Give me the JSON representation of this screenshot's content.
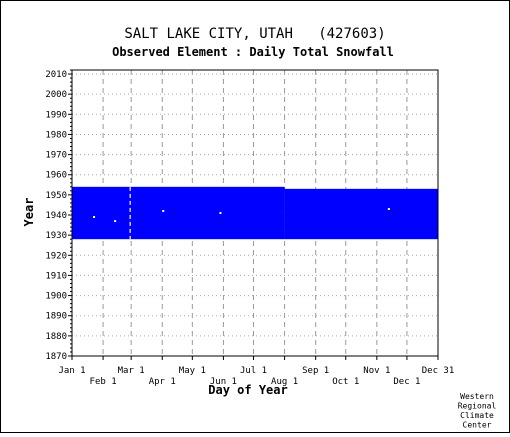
{
  "chart_data": {
    "type": "heatmap",
    "title": "SALT LAKE CITY, UTAH   (427603)",
    "subtitle": "Observed Element : Daily Total Snowfall",
    "xlabel": "Day of Year",
    "ylabel": "Year",
    "credit": [
      "Western",
      "Regional",
      "Climate",
      "Center"
    ],
    "xlim": [
      1,
      366
    ],
    "ylim": [
      1870,
      2012
    ],
    "y_ticks": [
      1870,
      1880,
      1890,
      1900,
      1910,
      1920,
      1930,
      1940,
      1950,
      1960,
      1970,
      1980,
      1990,
      2000,
      2010
    ],
    "x_ticks_upper": [
      {
        "label": "Jan 1",
        "day": 1
      },
      {
        "label": "Mar 1",
        "day": 60
      },
      {
        "label": "May 1",
        "day": 121
      },
      {
        "label": "Jul 1",
        "day": 182
      },
      {
        "label": "Sep 1",
        "day": 244
      },
      {
        "label": "Nov 1",
        "day": 305
      },
      {
        "label": "Dec 31",
        "day": 366
      }
    ],
    "x_ticks_lower": [
      {
        "label": "Feb 1",
        "day": 32
      },
      {
        "label": "Apr 1",
        "day": 91
      },
      {
        "label": "Jun 1",
        "day": 152
      },
      {
        "label": "Aug 1",
        "day": 213
      },
      {
        "label": "Oct 1",
        "day": 274
      },
      {
        "label": "Dec 1",
        "day": 335
      }
    ],
    "grid": true,
    "series": [
      {
        "color": "#0000ff",
        "ranges": [
          {
            "day_start": 1,
            "day_end": 213,
            "year_start": 1928,
            "year_end": 1954
          },
          {
            "day_start": 213,
            "day_end": 366,
            "year_start": 1928,
            "year_end": 1953
          }
        ]
      }
    ],
    "missing_points": [
      {
        "day": 23,
        "year": 1939
      },
      {
        "day": 44,
        "year": 1937
      },
      {
        "day": 92,
        "year": 1942
      },
      {
        "day": 149,
        "year": 1941
      },
      {
        "day": 317,
        "year": 1943
      }
    ],
    "missing_lines": [
      {
        "day": 59,
        "year_start": 1928,
        "year_end": 1954
      }
    ]
  }
}
